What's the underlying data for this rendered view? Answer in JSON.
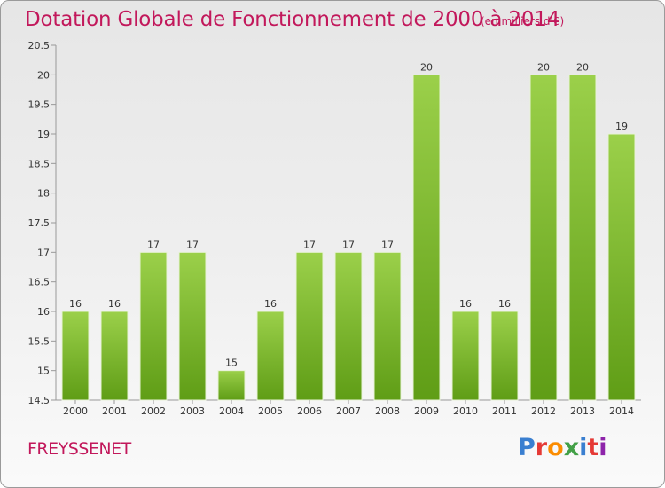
{
  "title": "Dotation Globale de Fonctionnement de 2000 à 2014",
  "unit_note": "(en milliers d'€)",
  "commune": "FREYSSENET",
  "logo": {
    "text": "Proxiti",
    "letters": [
      {
        "ch": "P",
        "color": "#3a7fd0"
      },
      {
        "ch": "r",
        "color": "#e53935"
      },
      {
        "ch": "o",
        "color": "#fb8c00"
      },
      {
        "ch": "x",
        "color": "#43a047"
      },
      {
        "ch": "i",
        "color": "#3a7fd0"
      },
      {
        "ch": "t",
        "color": "#e53935"
      },
      {
        "ch": "i",
        "color": "#8e24aa"
      }
    ]
  },
  "colors": {
    "title": "#c2185b",
    "bar_top": "#9bd04a",
    "bar_bottom": "#5f9d16",
    "axis_text": "#333333",
    "grid": "#b5b5b5"
  },
  "chart_data": {
    "type": "bar",
    "categories": [
      "2000",
      "2001",
      "2002",
      "2003",
      "2004",
      "2005",
      "2006",
      "2007",
      "2008",
      "2009",
      "2010",
      "2011",
      "2012",
      "2013",
      "2014"
    ],
    "values": [
      16,
      16,
      17,
      17,
      15,
      16,
      17,
      17,
      17,
      20,
      16,
      16,
      20,
      20,
      19
    ],
    "data_labels": [
      "16",
      "16",
      "17",
      "17",
      "15",
      "16",
      "17",
      "17",
      "17",
      "20",
      "16",
      "16",
      "20",
      "20",
      "19"
    ],
    "yticks": [
      "14.5",
      "15",
      "15.5",
      "16",
      "16.5",
      "17",
      "17.5",
      "18",
      "18.5",
      "19",
      "19.5",
      "20",
      "20.5"
    ],
    "ylim": [
      14.5,
      20.5
    ],
    "grid": false,
    "legend": "none"
  }
}
